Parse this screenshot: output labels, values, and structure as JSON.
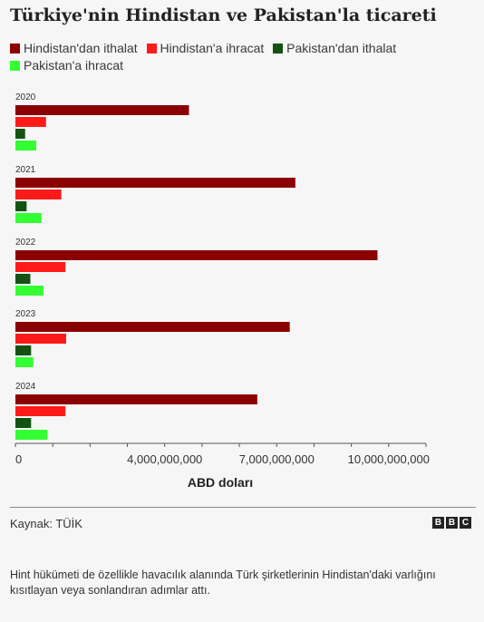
{
  "title": "Türkiye'nin Hindistan ve Pakistan'la ticareti",
  "chart_data": {
    "type": "bar",
    "orientation": "horizontal",
    "categories": [
      "2020",
      "2021",
      "2022",
      "2023",
      "2024"
    ],
    "series": [
      {
        "name": "Hindistan'dan ithalat",
        "color": "#8b0000",
        "values": [
          4650000000,
          7500000000,
          9700000000,
          7350000000,
          6480000000
        ]
      },
      {
        "name": "Hindistan'a ihracat",
        "color": "#ff1a1a",
        "values": [
          820000000,
          1230000000,
          1340000000,
          1360000000,
          1340000000
        ]
      },
      {
        "name": "Pakistan'dan ithalat",
        "color": "#145214",
        "values": [
          260000000,
          300000000,
          400000000,
          420000000,
          420000000
        ]
      },
      {
        "name": "Pakistan'a ihracat",
        "color": "#33ff33",
        "values": [
          560000000,
          700000000,
          750000000,
          480000000,
          860000000
        ]
      }
    ],
    "xlabel": "ABD doları",
    "xlim": [
      0,
      11000000000
    ],
    "xticks": [
      0,
      4000000000,
      7000000000,
      10000000000
    ],
    "xtick_labels": [
      "0",
      "4,000,000,000",
      "7,000,000,000",
      "10,000,000,000"
    ],
    "grid": false,
    "legend_position": "top"
  },
  "source": "Kaynak: TÜİK",
  "logo": [
    "B",
    "B",
    "C"
  ],
  "note": "Hint hükümeti de özellikle havacılık alanında Türk şirketlerinin Hindistan'daki varlığını kısıtlayan veya sonlandıran adımlar attı."
}
